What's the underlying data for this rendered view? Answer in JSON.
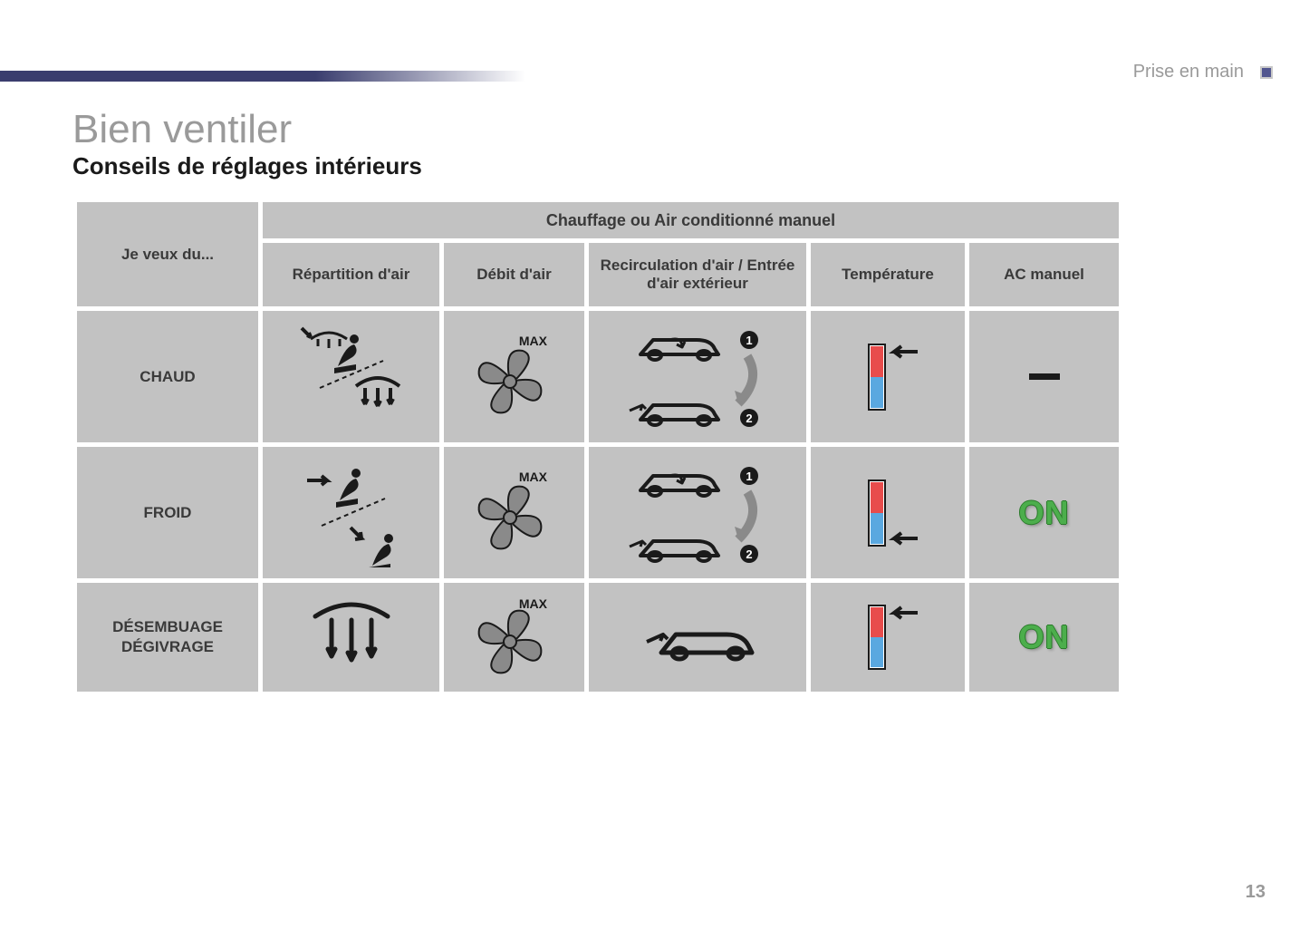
{
  "header": {
    "section_label": "Prise en main"
  },
  "title": "Bien ventiler",
  "subtitle": "Conseils de réglages intérieurs",
  "table": {
    "corner_label": "Je veux du...",
    "main_header": "Chauffage ou Air conditionné manuel",
    "columns": [
      "Répartition d'air",
      "Débit d'air",
      "Recirculation d'air / Entrée d'air extérieur",
      "Température",
      "AC manuel"
    ],
    "rows": [
      {
        "label": "CHAUD",
        "flow": "MAX",
        "temp_pos": "hot",
        "ac": "dash"
      },
      {
        "label": "FROID",
        "flow": "MAX",
        "temp_pos": "cold",
        "ac": "ON"
      },
      {
        "label": "DÉSEMBUAGE DÉGIVRAGE",
        "flow": "MAX",
        "temp_pos": "hot",
        "ac": "ON"
      }
    ]
  },
  "page_number": "13",
  "colors": {
    "band": "#3a3d6e",
    "grey_cell": "#c2c2c2",
    "grey_text": "#9a9a9a",
    "dark": "#1a1a1a",
    "fan": "#8a8a8a",
    "hot": "#e84c4c",
    "cold": "#5aa8e0",
    "on": "#4cae4c"
  }
}
